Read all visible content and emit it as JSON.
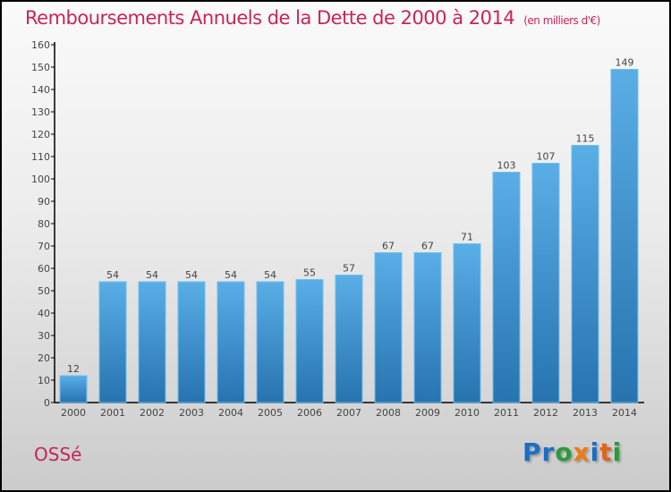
{
  "chart_data": {
    "type": "bar",
    "title": "Remboursements Annuels de la Dette de 2000 à 2014",
    "unit": "(en milliers d'€)",
    "categories": [
      "2000",
      "2001",
      "2002",
      "2003",
      "2004",
      "2005",
      "2006",
      "2007",
      "2008",
      "2009",
      "2010",
      "2011",
      "2012",
      "2013",
      "2014"
    ],
    "values": [
      12,
      54,
      54,
      54,
      54,
      54,
      55,
      57,
      67,
      67,
      71,
      103,
      107,
      115,
      149
    ],
    "ylim": [
      0,
      160
    ],
    "yticks": [
      0,
      10,
      20,
      30,
      40,
      50,
      60,
      70,
      80,
      90,
      100,
      110,
      120,
      130,
      140,
      150,
      160
    ],
    "xlabel": "",
    "ylabel": "",
    "grid": false,
    "bar_color": "#3a8fd0"
  },
  "footer": {
    "town": "OSSé"
  },
  "logo": {
    "letters": [
      "P",
      "r",
      "o",
      "x",
      "i",
      "t",
      "i"
    ],
    "colors": [
      "#1a6fc4",
      "#1a6fc4",
      "#2a9a3a",
      "#f07a10",
      "#1a6fc4",
      "#e0641a",
      "#2a9a3a"
    ]
  }
}
